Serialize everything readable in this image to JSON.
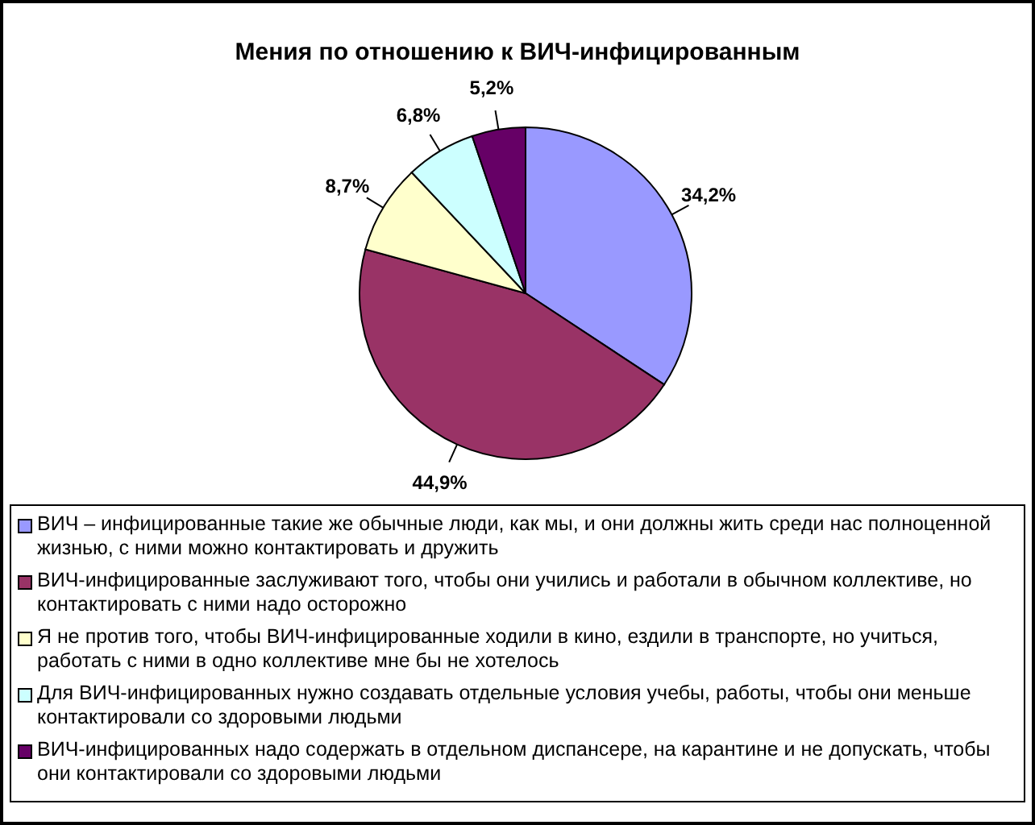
{
  "chart_data": {
    "type": "pie",
    "title": "Мения по отношению к ВИЧ-инфицированным",
    "categories": [
      "ВИЧ – инфицированные такие же обычные люди, как мы, и они должны жить среди нас полноценной жизнью, с ними можно контактировать и дружить",
      "ВИЧ-инфицированные заслуживают того, чтобы они учились и работали в обычном коллективе, но контактировать с ними надо осторожно",
      "Я не против того, чтобы ВИЧ-инфицированные ходили в кино, ездили в транспорте, но учиться, работать  с ними в одно коллективе мне бы не хотелось",
      "Для ВИЧ-инфицированных нужно создавать отдельные условия учебы, работы, чтобы они меньше контактировали со здоровыми людьми",
      "ВИЧ-инфицированных надо содержать в отдельном диспансере, на карантине и не допускать, чтобы они контактировали со здоровыми людьми"
    ],
    "values": [
      34.2,
      44.9,
      8.7,
      6.8,
      5.2
    ],
    "value_labels": [
      "34,2%",
      "44,9%",
      "8,7%",
      "6,8%",
      "5,2%"
    ],
    "colors": [
      "#9999ff",
      "#993366",
      "#ffffcc",
      "#ccffff",
      "#660066"
    ],
    "legend": "bottom"
  }
}
